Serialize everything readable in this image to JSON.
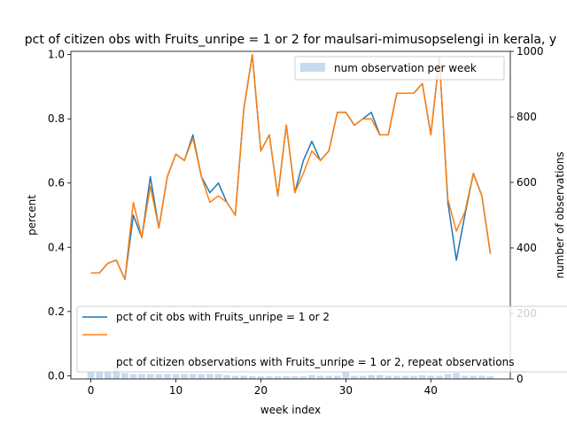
{
  "chart_data": {
    "type": "line",
    "title": "pct of citizen obs with Fruits_unripe = 1 or 2 for maulsari-mimusopselengi in kerala, y",
    "xlabel": "week index",
    "ylabel": "percent",
    "y2label": "number of observations",
    "xlim": [
      -2.35,
      49.35
    ],
    "ylim": [
      -0.01,
      1.01
    ],
    "y2lim": [
      0,
      1000
    ],
    "x_ticks": [
      "0",
      "10",
      "20",
      "30",
      "40"
    ],
    "y_ticks": [
      "0.0",
      "0.2",
      "0.4",
      "0.6",
      "0.8",
      "1.0"
    ],
    "y2_ticks": [
      "0",
      "200",
      "400",
      "600",
      "800",
      "1000"
    ],
    "x": [
      0,
      1,
      2,
      3,
      4,
      5,
      6,
      7,
      8,
      9,
      10,
      11,
      12,
      13,
      14,
      15,
      16,
      17,
      18,
      19,
      20,
      21,
      22,
      23,
      24,
      25,
      26,
      27,
      28,
      29,
      30,
      31,
      32,
      33,
      34,
      35,
      36,
      37,
      38,
      39,
      40,
      41,
      42,
      43,
      44,
      45,
      46,
      47
    ],
    "series": [
      {
        "name": "pct of cit obs with Fruits_unripe = 1 or 2",
        "color": "#1f77b4",
        "values": [
          0.32,
          0.32,
          0.35,
          0.36,
          0.3,
          0.5,
          0.43,
          0.62,
          0.46,
          0.62,
          0.69,
          0.67,
          0.75,
          0.62,
          0.57,
          0.6,
          0.54,
          0.5,
          0.83,
          1.0,
          0.7,
          0.75,
          0.56,
          0.78,
          0.57,
          0.67,
          0.73,
          0.67,
          0.7,
          0.82,
          0.82,
          0.78,
          0.8,
          0.82,
          0.75,
          0.75,
          0.88,
          0.88,
          0.88,
          0.91,
          0.75,
          0.99,
          0.54,
          0.36,
          0.5,
          0.63,
          0.56,
          0.38
        ]
      },
      {
        "name": "pct of citizen observations with Fruits_unripe = 1 or 2, repeat observations",
        "color": "#ff7f0e",
        "values": [
          0.32,
          0.32,
          0.35,
          0.36,
          0.3,
          0.54,
          0.43,
          0.59,
          0.46,
          0.62,
          0.69,
          0.67,
          0.74,
          0.62,
          0.54,
          0.56,
          0.54,
          0.5,
          0.83,
          1.0,
          0.7,
          0.75,
          0.56,
          0.78,
          0.57,
          0.63,
          0.7,
          0.67,
          0.7,
          0.82,
          0.82,
          0.78,
          0.8,
          0.8,
          0.75,
          0.75,
          0.88,
          0.88,
          0.88,
          0.91,
          0.75,
          0.99,
          0.55,
          0.45,
          0.51,
          0.63,
          0.56,
          0.38
        ]
      }
    ],
    "bars": {
      "name": "num observation per week",
      "color": "#c6dbef",
      "axis": "right",
      "values": [
        20,
        20,
        20,
        40,
        18,
        15,
        15,
        15,
        15,
        15,
        15,
        15,
        15,
        15,
        15,
        15,
        12,
        10,
        10,
        8,
        8,
        8,
        8,
        8,
        8,
        8,
        12,
        10,
        10,
        10,
        22,
        10,
        10,
        12,
        12,
        10,
        10,
        10,
        10,
        12,
        10,
        10,
        15,
        18,
        10,
        10,
        10,
        8
      ]
    },
    "legend": {
      "bars_position": "upper-right",
      "lines_position": "lower-center"
    },
    "grid": false
  }
}
